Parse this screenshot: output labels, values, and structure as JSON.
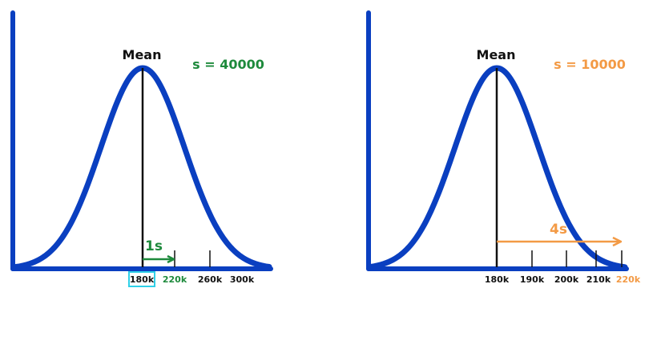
{
  "colors": {
    "curve": "#0a3fc0",
    "axis": "#0a3fc0",
    "mean_line": "#111111",
    "green": "#1e8a3c",
    "orange": "#f39a45",
    "highlight_box": "#2fd0e8"
  },
  "left": {
    "mean_label": "Mean",
    "s_label": "s = 40000",
    "arrow_label": "1s",
    "ticks": [
      "180k",
      "220k",
      "260k",
      "300k"
    ]
  },
  "right": {
    "mean_label": "Mean",
    "s_label": "s = 10000",
    "arrow_label": "4s",
    "ticks": [
      "180k",
      "190k",
      "200k",
      "210k",
      "220k"
    ]
  }
}
